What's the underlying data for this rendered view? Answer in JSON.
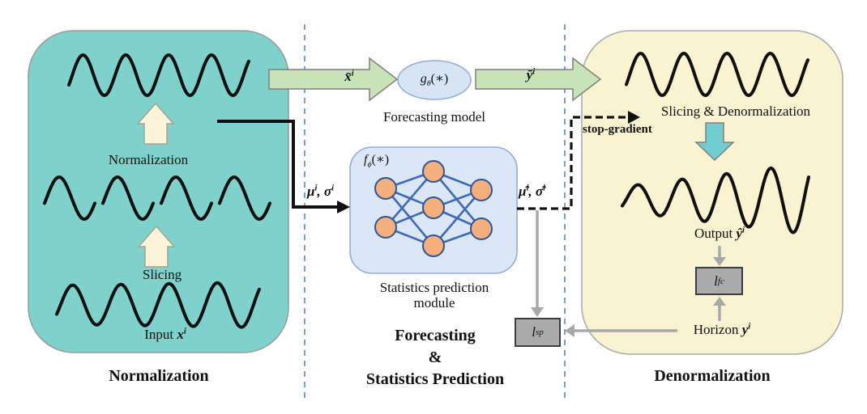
{
  "figure": {
    "left_panel": {
      "title": "Normalization",
      "normalization_label": "Normalization",
      "slicing_label": "Slicing",
      "input_label": {
        "prefix": "Input ",
        "var": "x",
        "sup": "i"
      }
    },
    "middle": {
      "xbar": {
        "var": "x̄",
        "sup": "i"
      },
      "forecast_fn": {
        "base": "g",
        "sub": "θ",
        "rest": "(∗)"
      },
      "forecast_caption": "Forecasting model",
      "ybar": {
        "var": "ȳ",
        "sup": "i"
      },
      "mu_sigma": {
        "m": "μ",
        "msup": "i",
        "sep": ", ",
        "s": "σ",
        "ssup": "i"
      },
      "stats_fn": {
        "base": "f",
        "sub": "ϕ",
        "rest": "(∗)"
      },
      "stats_caption_line1": "Statistics prediction",
      "stats_caption_line2": "module",
      "mu_sigma_hat": {
        "m": "μ̂",
        "msup": "i",
        "sep": ", ",
        "s": "σ̂",
        "ssup": "i"
      },
      "loss_sp": {
        "base": "l",
        "sub": "sp"
      },
      "title_line1": "Forecasting",
      "title_line2": "&",
      "title_line3": "Statistics Prediction"
    },
    "right_panel": {
      "title": "Denormalization",
      "slicing_denorm_label": "Slicing & Denormalization",
      "stop_gradient_label": "stop-gradient",
      "output_label": {
        "prefix": "Output ",
        "var": "ŷ",
        "sup": "i"
      },
      "loss_fc": {
        "base": "l",
        "sub": "fc"
      },
      "horizon_label": {
        "prefix": "Horizon ",
        "var": "y",
        "sup": "i"
      }
    },
    "colors": {
      "left_panel_fill": "#7ED2CB",
      "right_panel_fill": "#FAF3D2",
      "panel_border": "#9B9B9B",
      "flow_arrow_green": "#C9E3B9",
      "block_arrow_cream": "#FCF4D9",
      "block_arrow_teal": "#72CDD1",
      "module_fill": "#DBE7F6",
      "module_stroke": "#93ABDD",
      "node_fill": "#F4AF7D",
      "node_stroke": "#2F5597",
      "edge_blue": "#3E68B8",
      "loss_box_fill": "#ABABAB",
      "gray_arrow": "#A8A8A8",
      "separator_blue": "#5B9BD5",
      "wave_black": "#101010"
    }
  }
}
